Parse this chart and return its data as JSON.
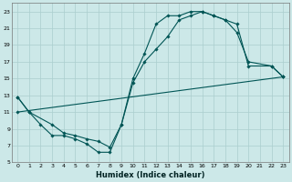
{
  "xlabel": "Humidex (Indice chaleur)",
  "bg_color": "#cce8e8",
  "grid_color": "#aacece",
  "line_color": "#005555",
  "xlim": [
    -0.5,
    23.5
  ],
  "ylim": [
    5,
    24
  ],
  "xticks": [
    0,
    1,
    2,
    3,
    4,
    5,
    6,
    7,
    8,
    9,
    10,
    11,
    12,
    13,
    14,
    15,
    16,
    17,
    18,
    19,
    20,
    21,
    22,
    23
  ],
  "yticks": [
    5,
    7,
    9,
    11,
    13,
    15,
    17,
    19,
    21,
    23
  ],
  "line1_x": [
    0,
    1,
    2,
    3,
    4,
    5,
    6,
    7,
    8,
    9,
    10,
    11,
    12,
    13,
    14,
    15,
    16,
    17,
    18,
    19,
    20,
    22,
    23
  ],
  "line1_y": [
    12.8,
    11.0,
    9.5,
    8.2,
    8.2,
    7.8,
    7.2,
    6.2,
    6.2,
    9.5,
    15.0,
    18.0,
    21.5,
    22.5,
    22.5,
    23.0,
    23.0,
    22.5,
    22.0,
    20.5,
    17.0,
    16.5,
    15.2
  ],
  "line2_x": [
    0,
    1,
    3,
    4,
    5,
    6,
    7,
    8,
    9,
    10,
    11,
    12,
    13,
    14,
    15,
    16,
    17,
    18,
    19,
    20,
    22,
    23
  ],
  "line2_y": [
    12.8,
    11.0,
    9.5,
    8.5,
    8.2,
    7.8,
    7.5,
    6.8,
    9.5,
    14.5,
    17.0,
    18.5,
    20.0,
    22.0,
    22.5,
    23.0,
    22.5,
    22.0,
    21.5,
    16.5,
    16.5,
    15.2
  ],
  "line3_x": [
    0,
    23
  ],
  "line3_y": [
    11.0,
    15.2
  ]
}
